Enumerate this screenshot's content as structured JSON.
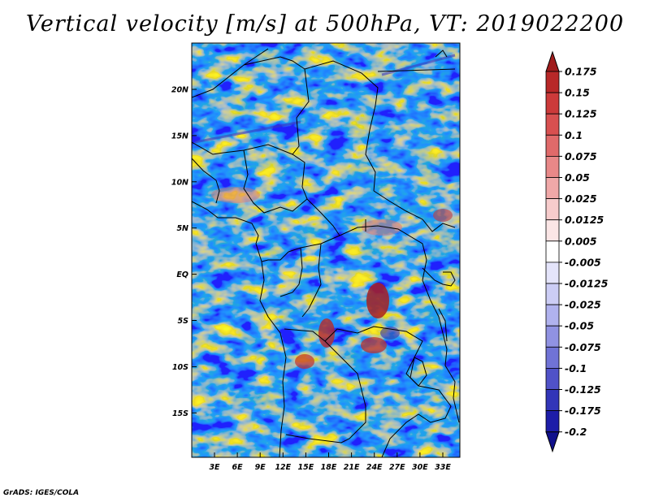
{
  "title": "Vertical velocity [m/s] at 500hPa, VT: 2019022200",
  "footer": "GrADS: IGES/COLA",
  "lat_ticks": [
    "20N",
    "15N",
    "10N",
    "5N",
    "EQ",
    "5S",
    "10S",
    "15S"
  ],
  "lon_ticks": [
    "3E",
    "6E",
    "9E",
    "12E",
    "15E",
    "18E",
    "21E",
    "24E",
    "27E",
    "30E",
    "33E"
  ],
  "colorbar": {
    "labels": [
      "0.175",
      "0.15",
      "0.125",
      "0.1",
      "0.075",
      "0.05",
      "0.025",
      "0.0125",
      "0.005",
      "-0.005",
      "-0.0125",
      "-0.025",
      "-0.05",
      "-0.075",
      "-0.1",
      "-0.125",
      "-0.175",
      "-0.2"
    ],
    "colors": [
      "#a01c1c",
      "#b82828",
      "#cc3a3a",
      "#d85050",
      "#e06a6a",
      "#e88888",
      "#f0a8a8",
      "#f7cccc",
      "#fbe6e6",
      "#ffffff",
      "#e4e4fa",
      "#cccdf5",
      "#b0b2ee",
      "#9092e2",
      "#7073d6",
      "#5052c8",
      "#3235b8",
      "#1d1da8",
      "#10108c"
    ]
  },
  "colors": {
    "positive": "#d83a3a",
    "negative": "#4a4ad0",
    "background": "#ffffff"
  }
}
